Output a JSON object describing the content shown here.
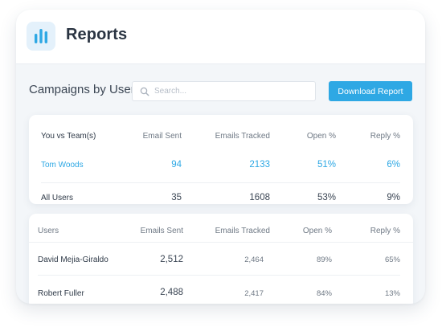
{
  "header": {
    "logo_icon": "bar-chart-icon",
    "title": "Reports"
  },
  "toolbar": {
    "section_title": "Campaigns by User",
    "search_placeholder": "Search...",
    "search_icon": "search-icon",
    "download_label": "Download Report"
  },
  "comparison": {
    "headers": [
      "You vs Team(s)",
      "Email Sent",
      "Emails Tracked",
      "Open %",
      "Reply %"
    ],
    "rows": [
      {
        "name": "Tom Woods",
        "sent": "94",
        "tracked": "2133",
        "open": "51%",
        "reply": "6%"
      },
      {
        "name": "All Users",
        "sent": "35",
        "tracked": "1608",
        "open": "53%",
        "reply": "9%"
      }
    ]
  },
  "users_table": {
    "headers": [
      "Users",
      "Emails Sent",
      "Emails Tracked",
      "Open %",
      "Reply %"
    ],
    "rows": [
      {
        "name": "David Mejia-Giraldo",
        "sent": "2,512",
        "tracked": "2,464",
        "open": "89%",
        "reply": "65%"
      },
      {
        "name": "Robert Fuller",
        "sent": "2,488",
        "tracked": "2,417",
        "open": "84%",
        "reply": "13%"
      }
    ]
  },
  "colors": {
    "accent": "#2ea8e4",
    "background": "#f3f6f9"
  }
}
